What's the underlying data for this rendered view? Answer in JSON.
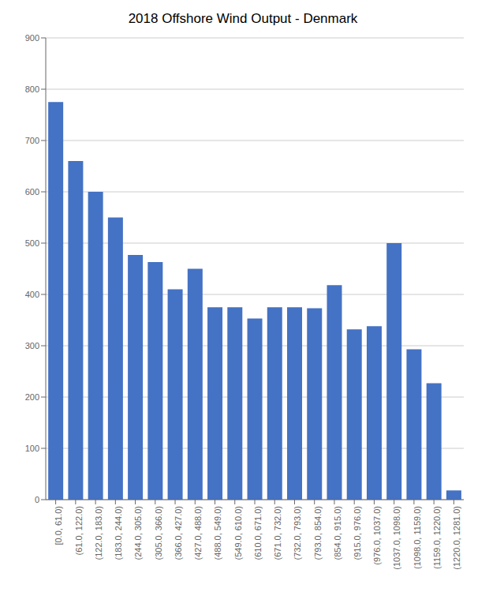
{
  "chart_data": {
    "type": "bar",
    "title": "2018 Offshore Wind Output  - Denmark",
    "categories": [
      "[0.0, 61.0)",
      "(61.0, 122.0)",
      "(122.0, 183.0)",
      "(183.0, 244.0)",
      "(244.0, 305.0)",
      "(305.0, 366.0)",
      "(366.0, 427.0)",
      "(427.0, 488.0)",
      "(488.0, 549.0)",
      "(549.0, 610.0)",
      "(610.0, 671.0)",
      "(671.0, 732.0)",
      "(732.0, 793.0)",
      "(793.0, 854.0)",
      "(854.0, 915.0)",
      "(915.0, 976.0)",
      "(976.0, 1037.0)",
      "(1037.0, 1098.0)",
      "(1098.0, 1159.0)",
      "(1159.0, 1220.0)",
      "(1220.0, 1281.0)"
    ],
    "values": [
      775,
      660,
      600,
      550,
      477,
      463,
      410,
      450,
      375,
      375,
      353,
      375,
      375,
      373,
      418,
      332,
      338,
      500,
      293,
      227,
      18
    ],
    "color": "#4472C4",
    "ylim": [
      0,
      900
    ],
    "yticks": [
      0,
      100,
      200,
      300,
      400,
      500,
      600,
      700,
      800,
      900
    ],
    "grid": true
  }
}
